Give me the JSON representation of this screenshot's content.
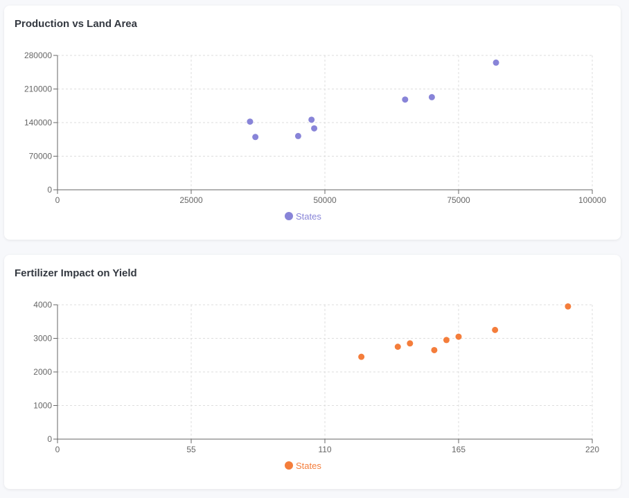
{
  "chart_data": [
    {
      "type": "scatter",
      "title": "Production vs Land Area",
      "xlabel": "",
      "ylabel": "",
      "xlim": [
        0,
        100000
      ],
      "ylim": [
        0,
        280000
      ],
      "xticks": [
        0,
        25000,
        50000,
        75000,
        100000
      ],
      "yticks": [
        0,
        70000,
        140000,
        210000,
        280000
      ],
      "grid": true,
      "legend_position": "bottom",
      "series": [
        {
          "name": "States",
          "color": "#8884d8",
          "points": [
            {
              "x": 36000,
              "y": 142000
            },
            {
              "x": 37000,
              "y": 110000
            },
            {
              "x": 45000,
              "y": 112000
            },
            {
              "x": 47500,
              "y": 146000
            },
            {
              "x": 48000,
              "y": 128000
            },
            {
              "x": 65000,
              "y": 188000
            },
            {
              "x": 70000,
              "y": 193000
            },
            {
              "x": 82000,
              "y": 265000
            }
          ]
        }
      ]
    },
    {
      "type": "scatter",
      "title": "Fertilizer Impact on Yield",
      "xlabel": "",
      "ylabel": "",
      "xlim": [
        0,
        220
      ],
      "ylim": [
        0,
        4000
      ],
      "xticks": [
        0,
        55,
        110,
        165,
        220
      ],
      "yticks": [
        0,
        1000,
        2000,
        3000,
        4000
      ],
      "grid": true,
      "legend_position": "bottom",
      "series": [
        {
          "name": "States",
          "color": "#f47d3b",
          "points": [
            {
              "x": 125,
              "y": 2450
            },
            {
              "x": 140,
              "y": 2750
            },
            {
              "x": 145,
              "y": 2850
            },
            {
              "x": 155,
              "y": 2650
            },
            {
              "x": 160,
              "y": 2950
            },
            {
              "x": 165,
              "y": 3050
            },
            {
              "x": 180,
              "y": 3250
            },
            {
              "x": 210,
              "y": 3950
            }
          ]
        }
      ]
    }
  ]
}
